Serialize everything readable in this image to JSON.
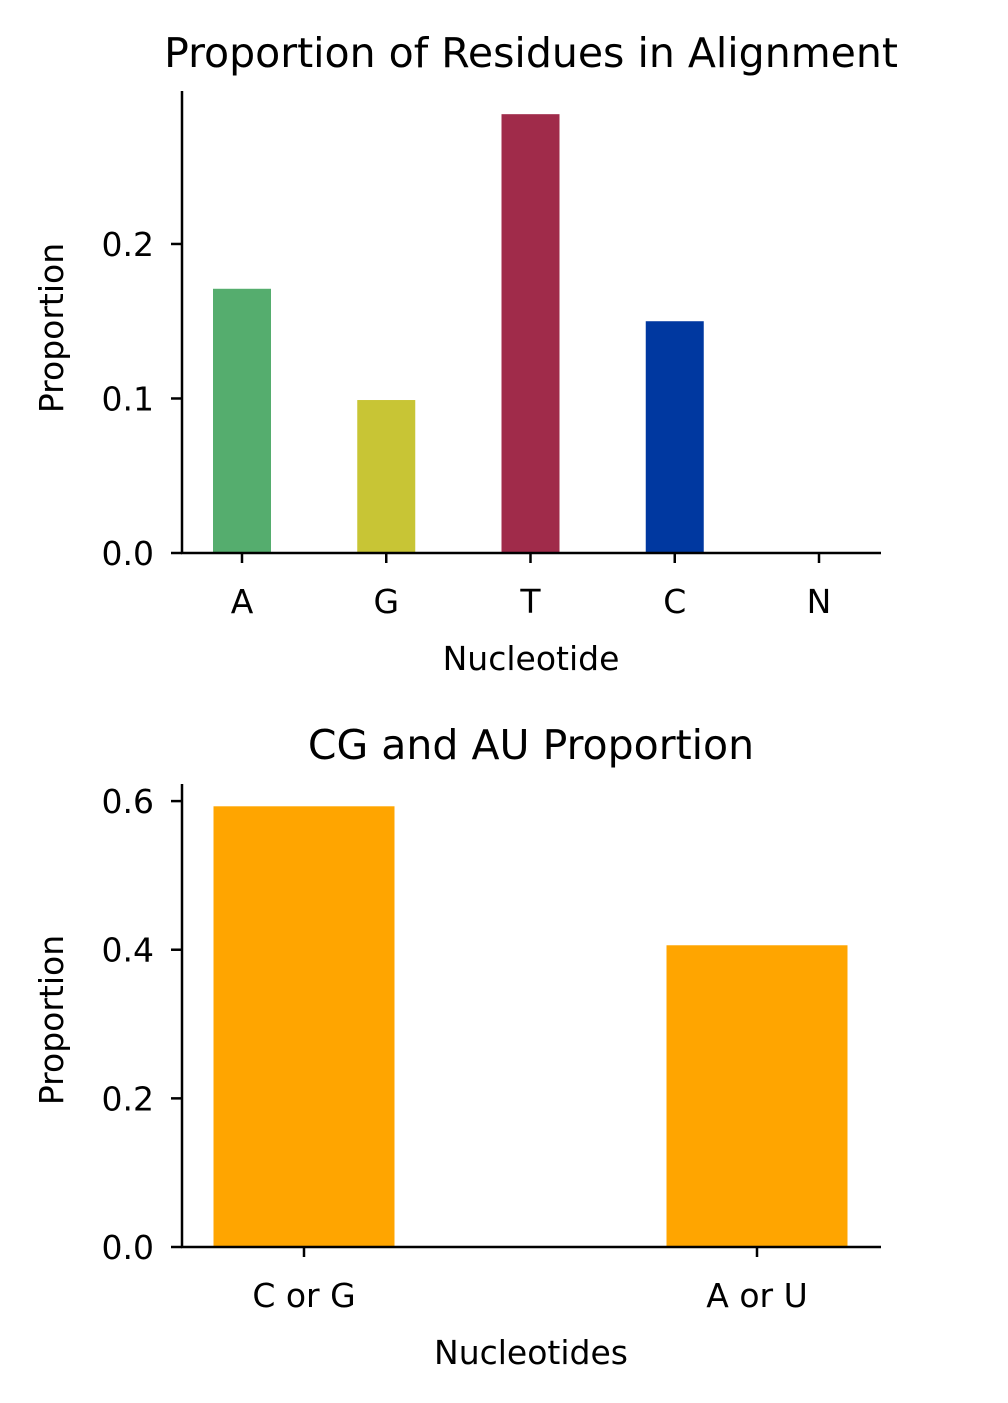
{
  "chart_data": [
    {
      "type": "bar",
      "title": "Proportion of Residues in Alignment",
      "xlabel": "Nucleotide",
      "ylabel": "Proportion",
      "categories": [
        "A",
        "G",
        "T",
        "C",
        "N"
      ],
      "values": [
        0.171,
        0.099,
        0.284,
        0.15,
        0.0
      ],
      "colors": [
        "#55ad6e",
        "#c8c535",
        "#a02b4a",
        "#0038a0",
        "#888888"
      ],
      "ylim": [
        0,
        0.299
      ],
      "yticks": [
        0.0,
        0.1,
        0.2
      ],
      "ytick_labels": [
        "0.0",
        "0.1",
        "0.2"
      ],
      "grid": false
    },
    {
      "type": "bar",
      "title": "CG and AU Proportion",
      "xlabel": "Nucleotides",
      "ylabel": "Proportion",
      "categories": [
        "C or G",
        "A or U"
      ],
      "values": [
        0.593,
        0.406
      ],
      "colors": [
        "#ffa500",
        "#ffa500"
      ],
      "ylim": [
        0,
        0.623
      ],
      "yticks": [
        0.0,
        0.2,
        0.4,
        0.6
      ],
      "ytick_labels": [
        "0.0",
        "0.2",
        "0.4",
        "0.6"
      ],
      "grid": false
    }
  ]
}
